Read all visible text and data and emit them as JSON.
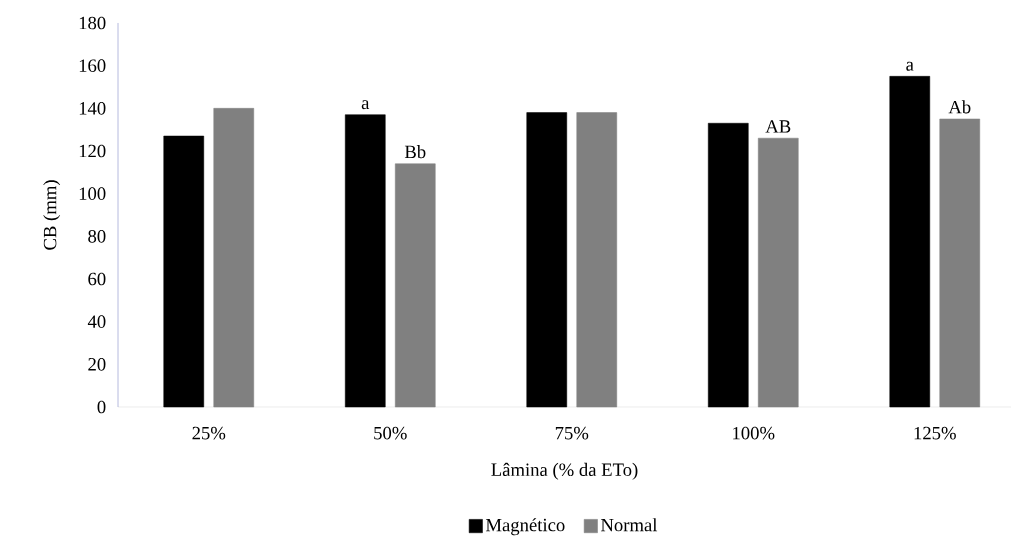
{
  "chart_data": {
    "type": "bar",
    "xlabel": "Lâmina  (% da ETo)",
    "ylabel": "CB (mm)",
    "categories": [
      "25%",
      "50%",
      "75%",
      "100%",
      "125%"
    ],
    "series": [
      {
        "name": "Magnético",
        "color": "#000000",
        "values": [
          127,
          137,
          138,
          133,
          155
        ],
        "value_labels": [
          null,
          "a",
          null,
          null,
          "a"
        ]
      },
      {
        "name": "Normal",
        "color": "#808080",
        "values": [
          140,
          114,
          138,
          126,
          135
        ],
        "value_labels": [
          null,
          "Bb",
          null,
          "AB",
          "Ab"
        ]
      }
    ],
    "ylim": [
      0,
      180
    ],
    "yticks": [
      0,
      20,
      40,
      60,
      80,
      100,
      120,
      140,
      160,
      180
    ],
    "legend": "bottom"
  }
}
